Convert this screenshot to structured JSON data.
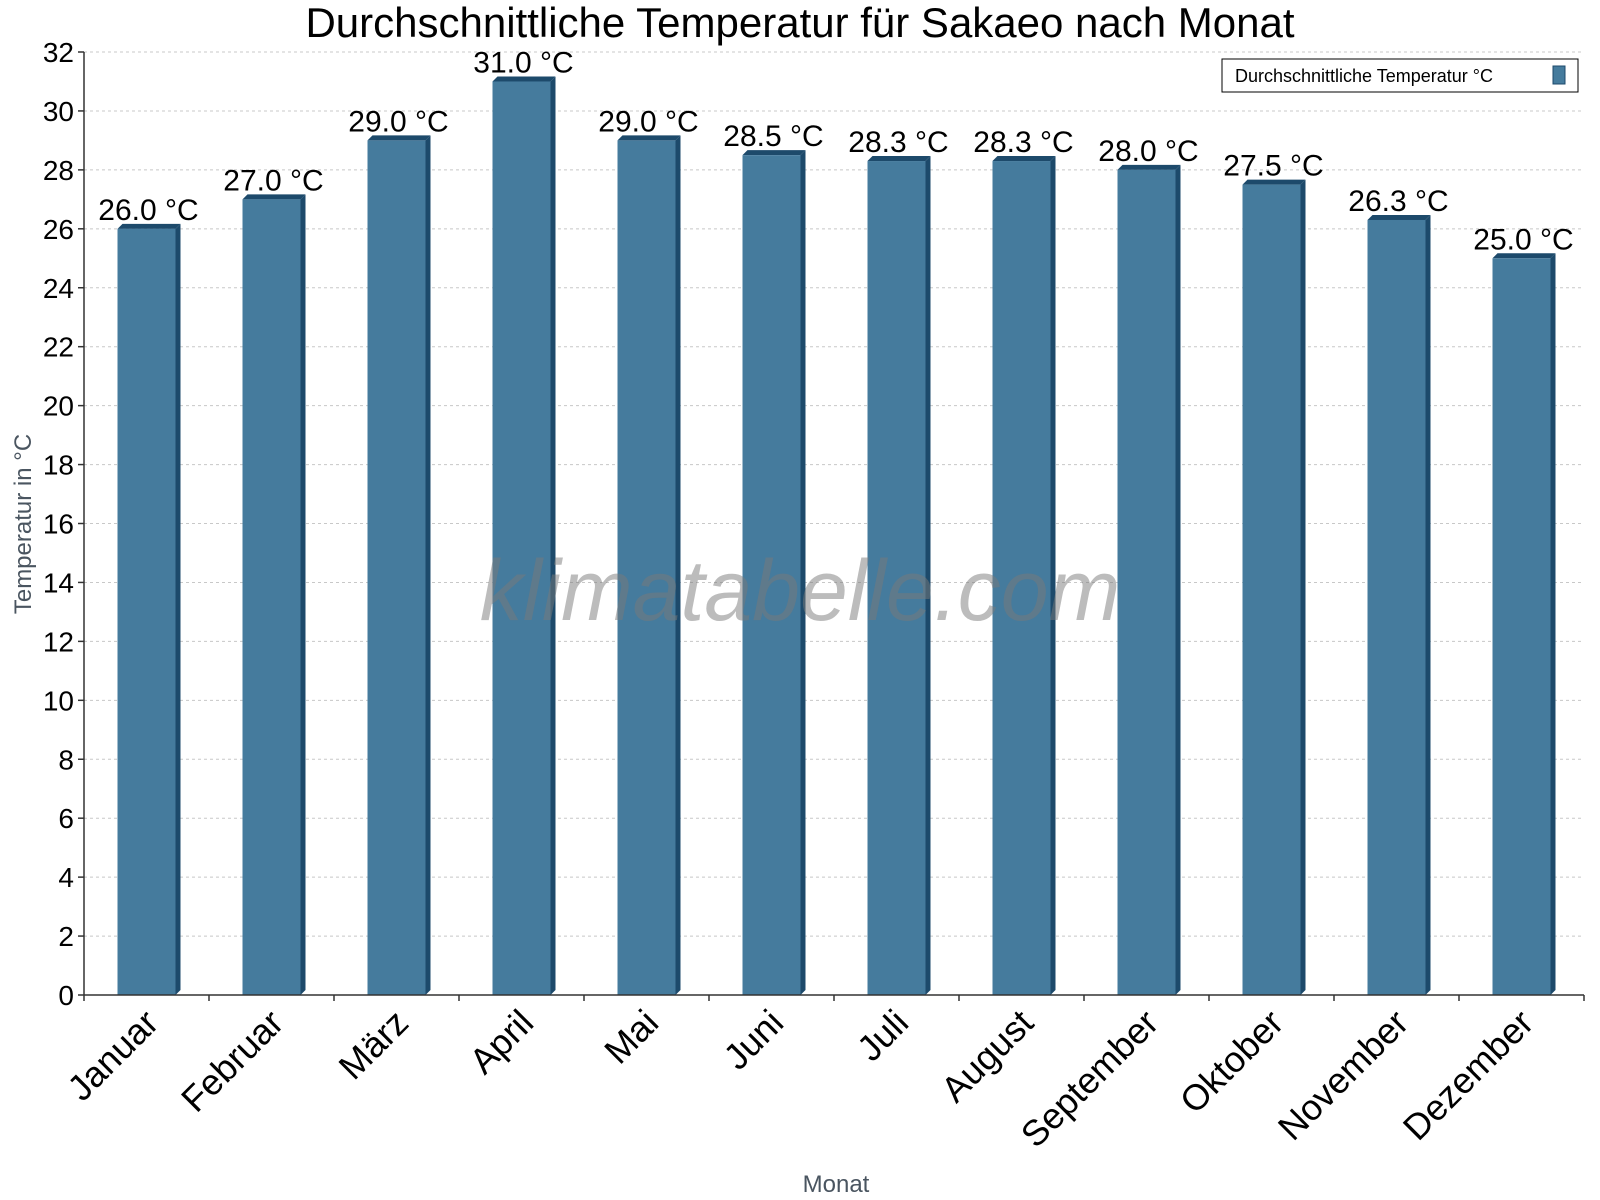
{
  "chart_data": {
    "type": "bar",
    "title": "Durchschnittliche Temperatur für Sakaeo nach Monat",
    "xlabel": "Monat",
    "ylabel": "Temperatur in °C",
    "categories": [
      "Januar",
      "Februar",
      "März",
      "April",
      "Mai",
      "Juni",
      "Juli",
      "August",
      "September",
      "Oktober",
      "November",
      "Dezember"
    ],
    "series": [
      {
        "name": "Durchschnittliche Temperatur °C",
        "values": [
          26.0,
          27.0,
          29.0,
          31.0,
          29.0,
          28.5,
          28.3,
          28.3,
          28.0,
          27.5,
          26.3,
          25.0
        ],
        "labels": [
          "26.0 °C",
          "27.0 °C",
          "29.0 °C",
          "31.0 °C",
          "29.0 °C",
          "28.5 °C",
          "28.3 °C",
          "28.3 °C",
          "28.0 °C",
          "27.5 °C",
          "26.3 °C",
          "25.0 °C"
        ],
        "color": "#457b9d",
        "edge_color": "#1d4a6b"
      }
    ],
    "ylim": [
      0,
      32
    ],
    "yticks": [
      "0",
      "2",
      "4",
      "6",
      "8",
      "10",
      "12",
      "14",
      "16",
      "18",
      "20",
      "22",
      "24",
      "26",
      "28",
      "30",
      "32"
    ],
    "grid": true,
    "legend_position": "top-right"
  },
  "watermark": "klimatabelle.com"
}
